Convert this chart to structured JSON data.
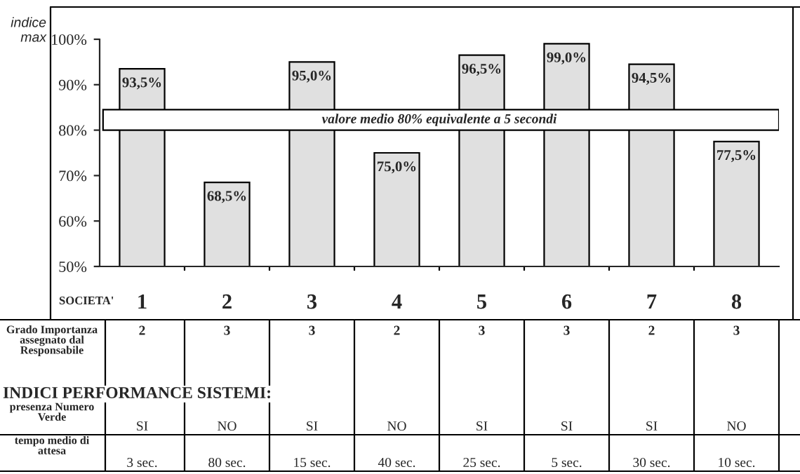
{
  "chart_data": {
    "type": "bar",
    "ylabel": "indice\nmax",
    "xlabel": "SOCIETA'",
    "categories": [
      "1",
      "2",
      "3",
      "4",
      "5",
      "6",
      "7",
      "8"
    ],
    "values": [
      93.5,
      68.5,
      95.0,
      75.0,
      96.5,
      99.0,
      94.5,
      77.5
    ],
    "value_labels": [
      "93,5%",
      "68,5%",
      "95,0%",
      "75,0%",
      "96,5%",
      "99,0%",
      "94,5%",
      "77,5%"
    ],
    "color": "#e0e0e0",
    "ylim": [
      50,
      100
    ],
    "yticks": [
      {
        "value": 50,
        "label": "50%"
      },
      {
        "value": 60,
        "label": "60%"
      },
      {
        "value": 70,
        "label": "70%"
      },
      {
        "value": 80,
        "label": "80%"
      },
      {
        "value": 90,
        "label": "90%"
      },
      {
        "value": 100,
        "label": "100%"
      }
    ],
    "bands": [
      {
        "axis": "y",
        "from": 80,
        "to": 84.5,
        "label": "valore medio 80% equivalente a 5 secondi",
        "color": "#ffffff"
      }
    ],
    "grid": false,
    "annotations": [
      "Grado Importanza\nassegnato dal\nResponsabile",
      "2",
      "3",
      "3",
      "2",
      "3",
      "3",
      "2",
      "3",
      "INDICI PERFORMANCE SISTEMI:",
      "presenza Numero\nVerde",
      "SI",
      "NO",
      "SI",
      "NO",
      "SI",
      "SI",
      "SI",
      "NO",
      "tempo medio di\nattesa",
      "3 sec.",
      "80 sec.",
      "15 sec.",
      "40 sec.",
      "25 sec.",
      "5 sec.",
      "30 sec.",
      "10 sec."
    ]
  }
}
